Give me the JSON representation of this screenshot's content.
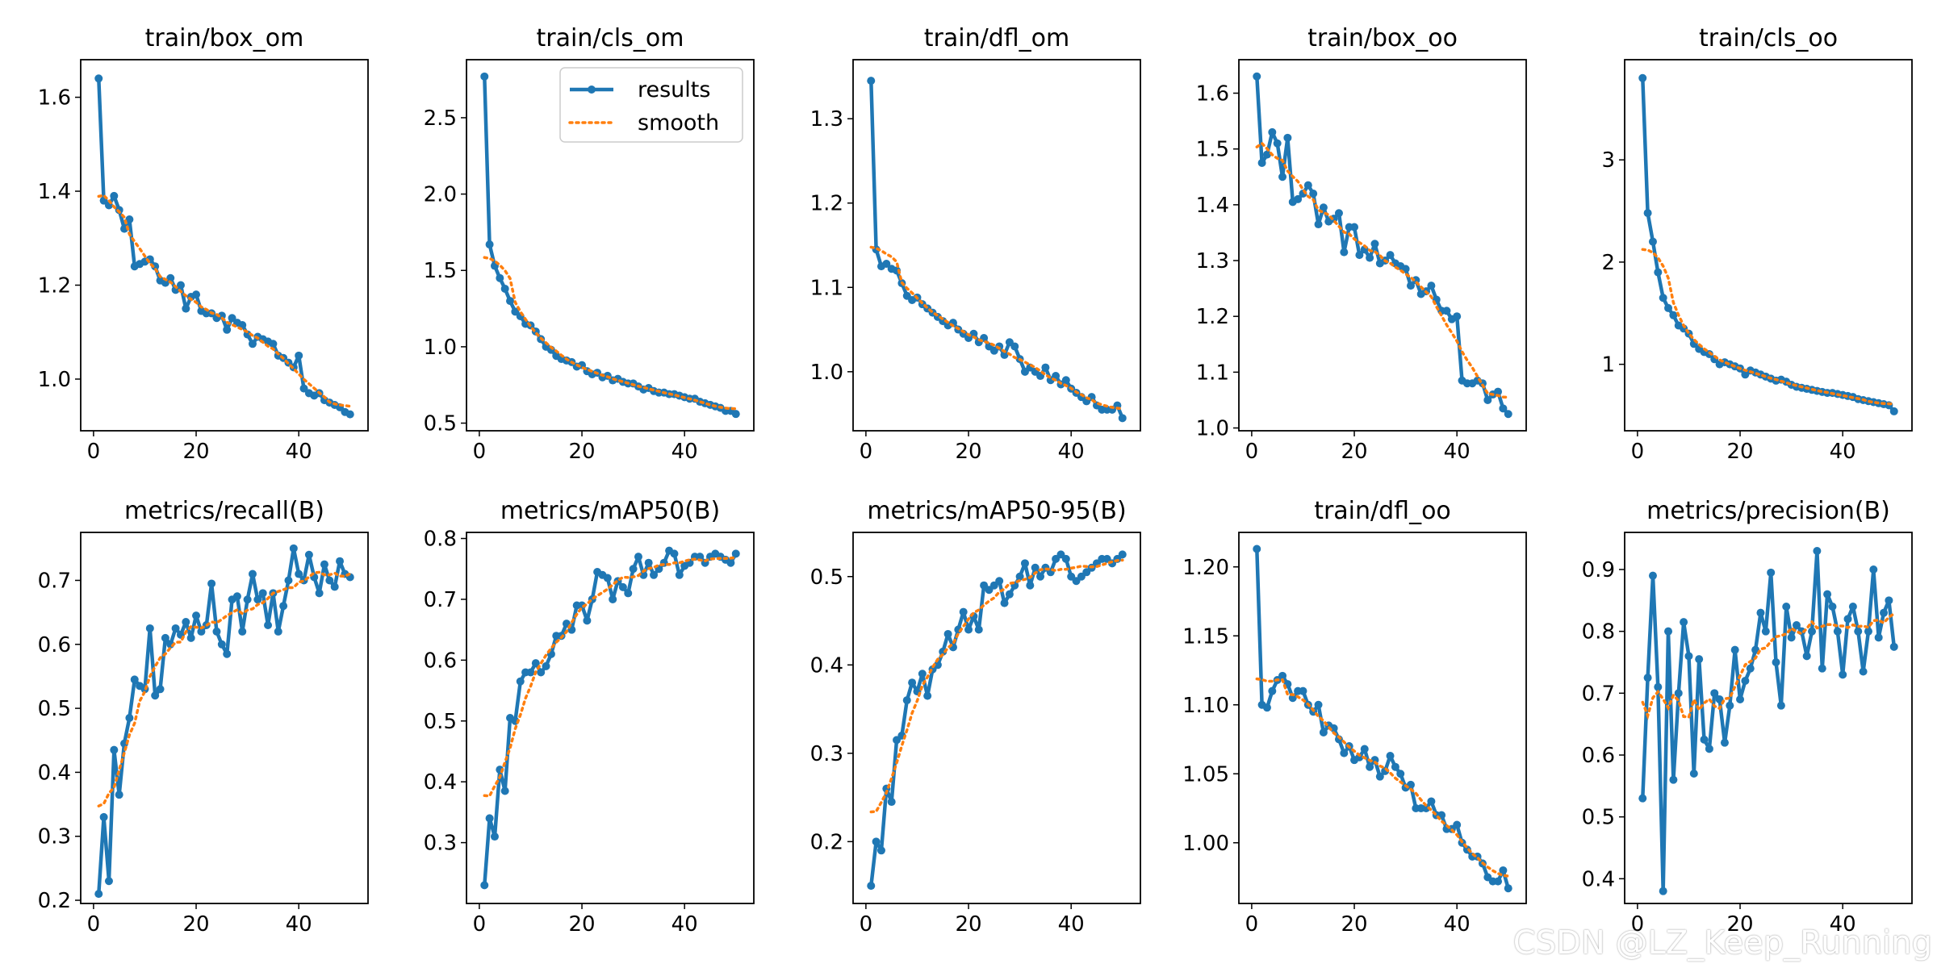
{
  "watermark": "CSDN @LZ_Keep_Running",
  "legend": {
    "results": "results",
    "smooth": "smooth"
  },
  "colors": {
    "results": "#1f77b4",
    "smooth": "#ff7f0e"
  },
  "chart_data": [
    {
      "type": "line",
      "title": "train/box_om",
      "xlim": [
        -2.5,
        53.5
      ],
      "ylim": [
        0.89,
        1.68
      ],
      "xticks": [
        0,
        20,
        40
      ],
      "yticks": [
        1.0,
        1.2,
        1.4,
        1.6
      ],
      "ytick_labels": [
        "1.0",
        "1.2",
        "1.4",
        "1.6"
      ],
      "results": [
        1.64,
        1.38,
        1.37,
        1.39,
        1.36,
        1.32,
        1.34,
        1.24,
        1.245,
        1.25,
        1.255,
        1.24,
        1.21,
        1.205,
        1.215,
        1.19,
        1.2,
        1.15,
        1.175,
        1.18,
        1.145,
        1.14,
        1.14,
        1.13,
        1.135,
        1.105,
        1.13,
        1.12,
        1.115,
        1.095,
        1.075,
        1.09,
        1.085,
        1.08,
        1.075,
        1.05,
        1.045,
        1.035,
        1.025,
        1.05,
        0.98,
        0.97,
        0.965,
        0.97,
        0.955,
        0.95,
        0.945,
        0.94,
        0.93,
        0.925
      ]
    },
    {
      "type": "line",
      "title": "train/cls_om",
      "xlim": [
        -2.5,
        53.5
      ],
      "ylim": [
        0.45,
        2.88
      ],
      "xticks": [
        0,
        20,
        40
      ],
      "yticks": [
        0.5,
        1.0,
        1.5,
        2.0,
        2.5
      ],
      "ytick_labels": [
        "0.5",
        "1.0",
        "1.5",
        "2.0",
        "2.5"
      ],
      "legend": true,
      "results": [
        2.77,
        1.67,
        1.53,
        1.45,
        1.38,
        1.3,
        1.23,
        1.2,
        1.15,
        1.14,
        1.1,
        1.05,
        1.0,
        0.98,
        0.94,
        0.92,
        0.91,
        0.9,
        0.87,
        0.88,
        0.84,
        0.82,
        0.83,
        0.8,
        0.81,
        0.78,
        0.79,
        0.77,
        0.76,
        0.76,
        0.74,
        0.72,
        0.73,
        0.71,
        0.7,
        0.7,
        0.69,
        0.69,
        0.68,
        0.67,
        0.66,
        0.66,
        0.64,
        0.63,
        0.62,
        0.61,
        0.6,
        0.58,
        0.58,
        0.56
      ]
    },
    {
      "type": "line",
      "title": "train/dfl_om",
      "xlim": [
        -2.5,
        53.5
      ],
      "ylim": [
        0.93,
        1.37
      ],
      "xticks": [
        0,
        20,
        40
      ],
      "yticks": [
        1.0,
        1.1,
        1.2,
        1.3
      ],
      "ytick_labels": [
        "1.0",
        "1.1",
        "1.2",
        "1.3"
      ],
      "results": [
        1.345,
        1.145,
        1.125,
        1.128,
        1.122,
        1.12,
        1.105,
        1.09,
        1.085,
        1.088,
        1.08,
        1.075,
        1.07,
        1.065,
        1.06,
        1.055,
        1.058,
        1.05,
        1.045,
        1.04,
        1.045,
        1.035,
        1.04,
        1.03,
        1.025,
        1.03,
        1.02,
        1.035,
        1.03,
        1.015,
        1.0,
        1.005,
        1.0,
        0.995,
        1.005,
        0.99,
        0.995,
        0.985,
        0.99,
        0.98,
        0.975,
        0.97,
        0.965,
        0.97,
        0.96,
        0.955,
        0.955,
        0.955,
        0.96,
        0.945
      ]
    },
    {
      "type": "line",
      "title": "train/box_oo",
      "xlim": [
        -2.5,
        53.5
      ],
      "ylim": [
        0.995,
        1.66
      ],
      "xticks": [
        0,
        20,
        40
      ],
      "yticks": [
        1.0,
        1.1,
        1.2,
        1.3,
        1.4,
        1.5,
        1.6
      ],
      "ytick_labels": [
        "1.0",
        "1.1",
        "1.2",
        "1.3",
        "1.4",
        "1.5",
        "1.6"
      ],
      "results": [
        1.63,
        1.475,
        1.49,
        1.53,
        1.51,
        1.45,
        1.52,
        1.405,
        1.41,
        1.42,
        1.435,
        1.42,
        1.365,
        1.395,
        1.37,
        1.375,
        1.385,
        1.315,
        1.36,
        1.36,
        1.31,
        1.32,
        1.305,
        1.33,
        1.295,
        1.3,
        1.31,
        1.295,
        1.29,
        1.285,
        1.255,
        1.265,
        1.24,
        1.245,
        1.255,
        1.23,
        1.21,
        1.21,
        1.195,
        1.2,
        1.085,
        1.08,
        1.08,
        1.085,
        1.08,
        1.05,
        1.06,
        1.065,
        1.035,
        1.025
      ]
    },
    {
      "type": "line",
      "title": "train/cls_oo",
      "xlim": [
        -2.5,
        53.5
      ],
      "ylim": [
        0.35,
        3.98
      ],
      "xticks": [
        0,
        20,
        40
      ],
      "yticks": [
        1,
        2,
        3
      ],
      "ytick_labels": [
        "1",
        "2",
        "3"
      ],
      "results": [
        3.8,
        2.48,
        2.2,
        1.9,
        1.65,
        1.55,
        1.48,
        1.38,
        1.35,
        1.3,
        1.2,
        1.15,
        1.12,
        1.1,
        1.05,
        1.0,
        1.02,
        1.0,
        0.98,
        0.96,
        0.9,
        0.94,
        0.92,
        0.9,
        0.88,
        0.86,
        0.84,
        0.85,
        0.83,
        0.8,
        0.78,
        0.77,
        0.76,
        0.75,
        0.74,
        0.73,
        0.72,
        0.72,
        0.71,
        0.7,
        0.69,
        0.68,
        0.66,
        0.65,
        0.64,
        0.63,
        0.62,
        0.61,
        0.6,
        0.54
      ]
    },
    {
      "type": "line",
      "title": "metrics/recall(B)",
      "xlim": [
        -2.5,
        53.5
      ],
      "ylim": [
        0.195,
        0.775
      ],
      "xticks": [
        0,
        20,
        40
      ],
      "yticks": [
        0.2,
        0.3,
        0.4,
        0.5,
        0.6,
        0.7
      ],
      "ytick_labels": [
        "0.2",
        "0.3",
        "0.4",
        "0.5",
        "0.6",
        "0.7"
      ],
      "results": [
        0.21,
        0.33,
        0.23,
        0.435,
        0.365,
        0.445,
        0.485,
        0.545,
        0.535,
        0.53,
        0.625,
        0.52,
        0.53,
        0.61,
        0.6,
        0.625,
        0.615,
        0.635,
        0.61,
        0.645,
        0.62,
        0.63,
        0.695,
        0.62,
        0.6,
        0.585,
        0.67,
        0.675,
        0.62,
        0.67,
        0.71,
        0.67,
        0.68,
        0.63,
        0.68,
        0.62,
        0.66,
        0.7,
        0.75,
        0.71,
        0.7,
        0.74,
        0.705,
        0.68,
        0.725,
        0.7,
        0.69,
        0.73,
        0.71,
        0.705
      ]
    },
    {
      "type": "line",
      "title": "metrics/mAP50(B)",
      "xlim": [
        -2.5,
        53.5
      ],
      "ylim": [
        0.2,
        0.81
      ],
      "xticks": [
        0,
        20,
        40
      ],
      "yticks": [
        0.3,
        0.4,
        0.5,
        0.6,
        0.7,
        0.8
      ],
      "ytick_labels": [
        "0.3",
        "0.4",
        "0.5",
        "0.6",
        "0.7",
        "0.8"
      ],
      "results": [
        0.23,
        0.34,
        0.31,
        0.42,
        0.385,
        0.505,
        0.5,
        0.565,
        0.58,
        0.58,
        0.595,
        0.58,
        0.59,
        0.61,
        0.64,
        0.64,
        0.66,
        0.65,
        0.69,
        0.69,
        0.665,
        0.7,
        0.745,
        0.74,
        0.735,
        0.7,
        0.73,
        0.72,
        0.71,
        0.75,
        0.77,
        0.74,
        0.76,
        0.74,
        0.75,
        0.76,
        0.78,
        0.775,
        0.74,
        0.755,
        0.76,
        0.77,
        0.77,
        0.76,
        0.77,
        0.775,
        0.77,
        0.765,
        0.76,
        0.775
      ]
    },
    {
      "type": "line",
      "title": "metrics/mAP50-95(B)",
      "xlim": [
        -2.5,
        53.5
      ],
      "ylim": [
        0.13,
        0.55
      ],
      "xticks": [
        0,
        20,
        40
      ],
      "yticks": [
        0.2,
        0.3,
        0.4,
        0.5
      ],
      "ytick_labels": [
        "0.2",
        "0.3",
        "0.4",
        "0.5"
      ],
      "results": [
        0.15,
        0.2,
        0.19,
        0.26,
        0.245,
        0.315,
        0.32,
        0.36,
        0.38,
        0.37,
        0.39,
        0.365,
        0.395,
        0.4,
        0.415,
        0.435,
        0.42,
        0.44,
        0.46,
        0.44,
        0.455,
        0.44,
        0.49,
        0.485,
        0.49,
        0.495,
        0.47,
        0.48,
        0.49,
        0.5,
        0.515,
        0.49,
        0.51,
        0.5,
        0.51,
        0.505,
        0.52,
        0.525,
        0.52,
        0.5,
        0.495,
        0.5,
        0.505,
        0.51,
        0.515,
        0.52,
        0.52,
        0.515,
        0.52,
        0.525
      ]
    },
    {
      "type": "line",
      "title": "train/dfl_oo",
      "xlim": [
        -2.5,
        53.5
      ],
      "ylim": [
        0.956,
        1.225
      ],
      "xticks": [
        0,
        20,
        40
      ],
      "yticks": [
        1.0,
        1.05,
        1.1,
        1.15,
        1.2
      ],
      "ytick_labels": [
        "1.00",
        "1.05",
        "1.10",
        "1.15",
        "1.20"
      ],
      "results": [
        1.213,
        1.1,
        1.098,
        1.11,
        1.118,
        1.121,
        1.115,
        1.105,
        1.11,
        1.11,
        1.1,
        1.095,
        1.1,
        1.08,
        1.085,
        1.083,
        1.075,
        1.065,
        1.07,
        1.06,
        1.062,
        1.068,
        1.055,
        1.06,
        1.048,
        1.052,
        1.063,
        1.055,
        1.05,
        1.04,
        1.042,
        1.025,
        1.025,
        1.025,
        1.03,
        1.02,
        1.02,
        1.01,
        1.01,
        1.013,
        1.0,
        0.995,
        0.99,
        0.99,
        0.985,
        0.975,
        0.972,
        0.972,
        0.98,
        0.967
      ]
    },
    {
      "type": "line",
      "title": "metrics/precision(B)",
      "xlim": [
        -2.5,
        53.5
      ],
      "ylim": [
        0.36,
        0.96
      ],
      "xticks": [
        0,
        20,
        40
      ],
      "yticks": [
        0.4,
        0.5,
        0.6,
        0.7,
        0.8,
        0.9
      ],
      "ytick_labels": [
        "0.4",
        "0.5",
        "0.6",
        "0.7",
        "0.8",
        "0.9"
      ],
      "results": [
        0.53,
        0.725,
        0.89,
        0.71,
        0.38,
        0.8,
        0.56,
        0.7,
        0.815,
        0.76,
        0.57,
        0.755,
        0.625,
        0.61,
        0.7,
        0.69,
        0.62,
        0.68,
        0.77,
        0.69,
        0.72,
        0.74,
        0.77,
        0.83,
        0.8,
        0.895,
        0.75,
        0.68,
        0.84,
        0.79,
        0.81,
        0.8,
        0.76,
        0.8,
        0.93,
        0.74,
        0.86,
        0.84,
        0.8,
        0.73,
        0.82,
        0.84,
        0.8,
        0.735,
        0.8,
        0.9,
        0.79,
        0.83,
        0.85,
        0.775
      ]
    }
  ]
}
